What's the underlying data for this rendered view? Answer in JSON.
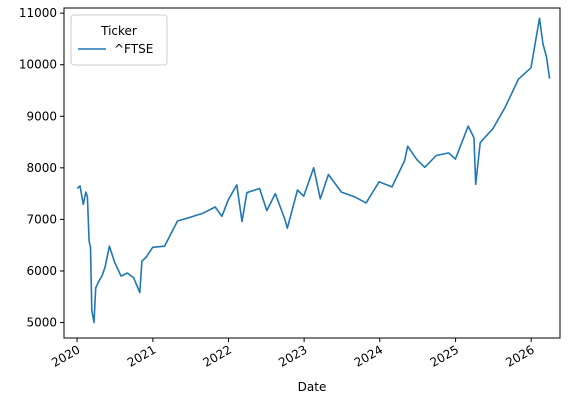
{
  "chart_data": {
    "type": "line",
    "title": "",
    "xlabel": "Date",
    "ylabel": "",
    "xlim": [
      "2019-10-30",
      "2026-05-20"
    ],
    "ylim": [
      4700,
      11100
    ],
    "x_ticks": [
      "2020",
      "2021",
      "2022",
      "2023",
      "2024",
      "2025",
      "2026"
    ],
    "y_ticks": [
      5000,
      6000,
      7000,
      8000,
      9000,
      10000,
      11000
    ],
    "grid": false,
    "legend": {
      "title": "Ticker",
      "placement": "top-left"
    },
    "series": [
      {
        "name": "^FTSE",
        "color": "#1f77b4",
        "x": [
          "2020-01-02",
          "2020-01-15",
          "2020-01-31",
          "2020-02-12",
          "2020-02-20",
          "2020-02-28",
          "2020-03-06",
          "2020-03-12",
          "2020-03-16",
          "2020-03-23",
          "2020-03-31",
          "2020-04-15",
          "2020-04-30",
          "2020-05-15",
          "2020-06-05",
          "2020-06-30",
          "2020-07-31",
          "2020-08-31",
          "2020-09-30",
          "2020-10-30",
          "2020-11-09",
          "2020-11-30",
          "2020-12-31",
          "2021-02-26",
          "2021-04-30",
          "2021-06-30",
          "2021-08-31",
          "2021-10-29",
          "2021-11-30",
          "2021-12-31",
          "2022-02-10",
          "2022-03-07",
          "2022-03-31",
          "2022-05-31",
          "2022-07-05",
          "2022-08-15",
          "2022-09-30",
          "2022-10-12",
          "2022-11-30",
          "2022-12-30",
          "2023-02-16",
          "2023-03-20",
          "2023-04-28",
          "2023-06-30",
          "2023-08-31",
          "2023-10-27",
          "2023-12-29",
          "2024-02-29",
          "2024-04-30",
          "2024-05-15",
          "2024-06-28",
          "2024-08-05",
          "2024-09-30",
          "2024-11-29",
          "2024-12-31",
          "2025-03-03",
          "2025-03-31",
          "2025-04-08",
          "2025-04-30",
          "2025-06-30",
          "2025-08-29",
          "2025-10-31",
          "2025-12-31",
          "2026-02-10",
          "2026-02-27",
          "2026-03-16",
          "2026-03-31"
        ],
        "values": [
          7600,
          7650,
          7290,
          7530,
          7440,
          6580,
          6460,
          5240,
          5150,
          5000,
          5670,
          5800,
          5900,
          6070,
          6480,
          6170,
          5900,
          5960,
          5870,
          5580,
          6190,
          6270,
          6460,
          6480,
          6970,
          7040,
          7120,
          7240,
          7060,
          7380,
          7670,
          6960,
          7520,
          7600,
          7170,
          7500,
          7000,
          6830,
          7570,
          7450,
          8000,
          7400,
          7870,
          7530,
          7440,
          7320,
          7730,
          7630,
          8140,
          8420,
          8160,
          8010,
          8240,
          8290,
          8170,
          8810,
          8580,
          7680,
          8490,
          8760,
          9180,
          9720,
          9940,
          10900,
          10400,
          10150,
          9730
        ]
      }
    ]
  }
}
